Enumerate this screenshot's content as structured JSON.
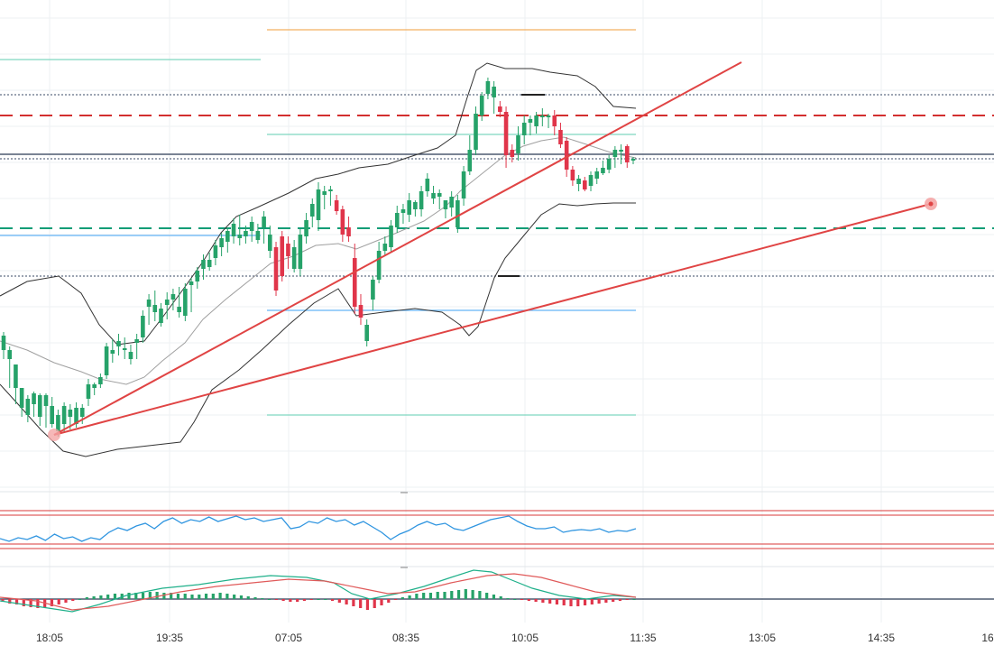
{
  "chart_data": {
    "type": "candlestick",
    "x_axis": {
      "tick_labels": [
        "18:05",
        "19:35",
        "07:05",
        "08:35",
        "10:05",
        "11:35",
        "13:05",
        "14:35",
        "16"
      ]
    },
    "grid": true,
    "colors": {
      "up": "#26a269",
      "down": "#e0354a",
      "bollinger": "#333333",
      "basis": "#a0a0a0",
      "trendline": "#e04444",
      "rsi": "#2f95e0",
      "macd_line": "#1fb08a",
      "signal_line": "#e05a5a",
      "level_teal": "#7fd6c0",
      "level_orange": "#f3b062",
      "level_blue": "#64b5f6",
      "dashed_red": "#d32f2f",
      "dashed_green": "#0f9d76"
    },
    "price_panel": {
      "candles_ohlc": [
        [
          388,
          372,
          398,
          368
        ],
        [
          398,
          388,
          430,
          384
        ],
        [
          430,
          404,
          448,
          412
        ],
        [
          452,
          430,
          462,
          440
        ],
        [
          460,
          442,
          468,
          438
        ],
        [
          448,
          436,
          462,
          434
        ],
        [
          462,
          438,
          472,
          436
        ],
        [
          450,
          438,
          474,
          436
        ],
        [
          470,
          450,
          474,
          440
        ],
        [
          478,
          460,
          484,
          454
        ],
        [
          470,
          450,
          478,
          446
        ],
        [
          462,
          454,
          476,
          448
        ],
        [
          470,
          452,
          474,
          446
        ],
        [
          462,
          452,
          470,
          448
        ],
        [
          442,
          426,
          450,
          420
        ],
        [
          430,
          426,
          438,
          424
        ],
        [
          426,
          418,
          430,
          414
        ],
        [
          416,
          384,
          420,
          380
        ],
        [
          392,
          388,
          402,
          376
        ],
        [
          384,
          378,
          394,
          370
        ],
        [
          388,
          386,
          398,
          374
        ],
        [
          398,
          390,
          404,
          382
        ],
        [
          380,
          376,
          398,
          370
        ],
        [
          374,
          350,
          380,
          344
        ],
        [
          340,
          332,
          360,
          326
        ],
        [
          346,
          338,
          356,
          322
        ],
        [
          358,
          342,
          362,
          336
        ],
        [
          338,
          332,
          354,
          324
        ],
        [
          332,
          326,
          344,
          320
        ],
        [
          346,
          340,
          352,
          318
        ],
        [
          350,
          320,
          356,
          314
        ],
        [
          316,
          312,
          346,
          308
        ],
        [
          312,
          300,
          320,
          296
        ],
        [
          298,
          288,
          310,
          282
        ],
        [
          296,
          288,
          300,
          280
        ],
        [
          286,
          272,
          294,
          266
        ],
        [
          274,
          264,
          284,
          258
        ],
        [
          268,
          256,
          280,
          252
        ],
        [
          262,
          248,
          270,
          242
        ],
        [
          264,
          260,
          272,
          238
        ],
        [
          262,
          256,
          270,
          250
        ],
        [
          256,
          246,
          268,
          240
        ],
        [
          266,
          256,
          270,
          248
        ],
        [
          252,
          240,
          270,
          234
        ],
        [
          278,
          260,
          286,
          250
        ],
        [
          274,
          322,
          328,
          268
        ],
        [
          262,
          306,
          312,
          256
        ],
        [
          270,
          284,
          298,
          262
        ],
        [
          298,
          274,
          302,
          266
        ],
        [
          298,
          260,
          306,
          254
        ],
        [
          262,
          244,
          270,
          236
        ],
        [
          240,
          226,
          252,
          220
        ],
        [
          244,
          210,
          256,
          202
        ],
        [
          216,
          212,
          232,
          206
        ],
        [
          212,
          210,
          228,
          206
        ],
        [
          222,
          234,
          238,
          216
        ],
        [
          232,
          260,
          268,
          228
        ],
        [
          252,
          262,
          268,
          240
        ],
        [
          286,
          340,
          348,
          270
        ],
        [
          338,
          352,
          360,
          326
        ],
        [
          378,
          360,
          384,
          354
        ],
        [
          332,
          310,
          344,
          306
        ],
        [
          310,
          278,
          314,
          268
        ],
        [
          278,
          270,
          284,
          262
        ],
        [
          274,
          250,
          280,
          244
        ],
        [
          252,
          236,
          258,
          228
        ],
        [
          236,
          232,
          248,
          226
        ],
        [
          238,
          222,
          246,
          214
        ],
        [
          232,
          224,
          240,
          222
        ],
        [
          232,
          212,
          240,
          206
        ],
        [
          212,
          198,
          218,
          192
        ],
        [
          220,
          214,
          226,
          206
        ],
        [
          218,
          214,
          232,
          210
        ],
        [
          232,
          222,
          242,
          222
        ],
        [
          230,
          218,
          240,
          212
        ],
        [
          252,
          222,
          258,
          216
        ],
        [
          220,
          190,
          228,
          184
        ],
        [
          190,
          166,
          194,
          150
        ],
        [
          166,
          126,
          172,
          118
        ],
        [
          128,
          106,
          134,
          102
        ],
        [
          104,
          90,
          110,
          86
        ],
        [
          108,
          96,
          126,
          90
        ],
        [
          118,
          124,
          130,
          112
        ],
        [
          124,
          172,
          186,
          118
        ],
        [
          166,
          174,
          180,
          160
        ],
        [
          170,
          150,
          178,
          140
        ],
        [
          150,
          136,
          160,
          128
        ],
        [
          136,
          132,
          150,
          128
        ],
        [
          140,
          128,
          148,
          124
        ],
        [
          130,
          128,
          140,
          120
        ],
        [
          130,
          128,
          142,
          126
        ],
        [
          128,
          140,
          150,
          122
        ],
        [
          144,
          160,
          164,
          136
        ],
        [
          156,
          188,
          196,
          152
        ],
        [
          188,
          200,
          206,
          184
        ],
        [
          204,
          198,
          212,
          194
        ],
        [
          200,
          210,
          212,
          196
        ],
        [
          206,
          194,
          212,
          190
        ],
        [
          198,
          190,
          204,
          186
        ],
        [
          192,
          186,
          194,
          178
        ],
        [
          188,
          176,
          192,
          172
        ],
        [
          174,
          166,
          186,
          162
        ],
        [
          168,
          166,
          182,
          160
        ],
        [
          162,
          180,
          186,
          160
        ],
        [
          178,
          176,
          182,
          174
        ]
      ],
      "horizontal_levels": [
        {
          "style": "solid",
          "color": "level_orange"
        },
        {
          "style": "solid",
          "color": "level_teal"
        },
        {
          "style": "solid",
          "color": "level_teal"
        },
        {
          "style": "solid",
          "color": "level_teal"
        },
        {
          "style": "solid",
          "color": "level_blue"
        },
        {
          "style": "solid",
          "color": "level_blue"
        },
        {
          "style": "dashed",
          "color": "dashed_red"
        },
        {
          "style": "dashed",
          "color": "dashed_green"
        },
        {
          "style": "dotted",
          "color": "#3a4a66"
        },
        {
          "style": "dotted",
          "color": "#3a4a66"
        },
        {
          "style": "dotted",
          "color": "#3a4a66"
        },
        {
          "style": "solid",
          "color": "#2b3a55"
        }
      ],
      "trendlines": 2
    },
    "rsi_panel": {
      "bands": 2
    },
    "macd_panel": {
      "histogram": true
    }
  }
}
